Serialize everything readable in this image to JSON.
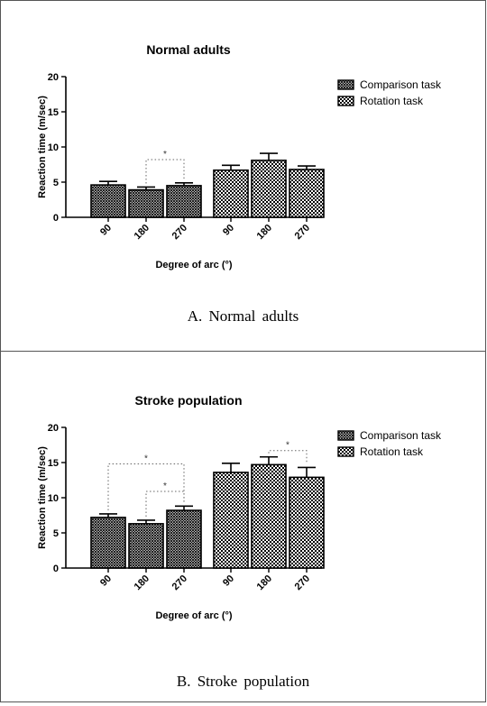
{
  "charts_common": {
    "categories": [
      "90",
      "180",
      "270"
    ],
    "xlabel": "Degree of arc (°)",
    "ylabel": "Reaction time (m/sec)",
    "legend": [
      "Comparison task",
      "Rotation task"
    ],
    "legend_placement": "right"
  },
  "chart_data": [
    {
      "type": "bar",
      "title": "Normal adults",
      "caption": "A.  Normal  adults",
      "categories": [
        "90",
        "180",
        "270"
      ],
      "xlabel": "Degree of arc (°)",
      "ylabel": "Reaction time (m/sec)",
      "ylim": [
        0,
        20
      ],
      "yticks": [
        "0",
        "5",
        "10",
        "15",
        "20"
      ],
      "series": [
        {
          "name": "Comparison task",
          "values": [
            4.6,
            3.9,
            4.5
          ],
          "errors": [
            0.5,
            0.4,
            0.4
          ]
        },
        {
          "name": "Rotation task",
          "values": [
            6.7,
            8.1,
            6.8
          ],
          "errors": [
            0.7,
            1.0,
            0.5
          ]
        }
      ],
      "significance": [
        {
          "series": 0,
          "from": 1,
          "to": 2,
          "y": 8.2,
          "label": "*"
        }
      ]
    },
    {
      "type": "bar",
      "title": "Stroke population",
      "caption": "B.  Stroke  population",
      "categories": [
        "90",
        "180",
        "270"
      ],
      "xlabel": "Degree of arc (°)",
      "ylabel": "Reaction time (m/sec)",
      "ylim": [
        0,
        20
      ],
      "yticks": [
        "0",
        "5",
        "10",
        "15",
        "20"
      ],
      "series": [
        {
          "name": "Comparison task",
          "values": [
            7.2,
            6.3,
            8.2
          ],
          "errors": [
            0.5,
            0.5,
            0.6
          ]
        },
        {
          "name": "Rotation task",
          "values": [
            13.6,
            14.7,
            12.9
          ],
          "errors": [
            1.3,
            1.1,
            1.4
          ]
        }
      ],
      "significance": [
        {
          "series": 0,
          "from": 0,
          "to": 2,
          "y": 14.8,
          "label": "*"
        },
        {
          "series": 0,
          "from": 1,
          "to": 2,
          "y": 10.9,
          "label": "*"
        },
        {
          "series": 1,
          "from": 1,
          "to": 2,
          "y": 16.7,
          "label": "*"
        }
      ]
    }
  ]
}
